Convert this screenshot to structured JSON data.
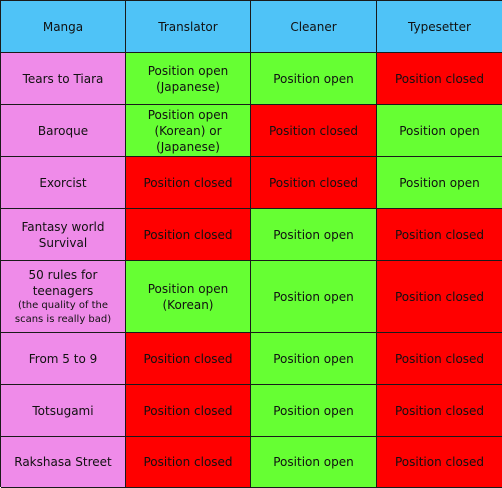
{
  "colors": {
    "header": "#4fc3f7",
    "manga": "#ef8be9",
    "open": "#66ff33",
    "closed": "#ff0000"
  },
  "headers": [
    "Manga",
    "Translator",
    "Cleaner",
    "Typesetter"
  ],
  "rows": [
    {
      "manga": "Tears to Tiara",
      "translator": {
        "text": "Position open (Japanese)",
        "status": "open"
      },
      "cleaner": {
        "text": "Position open",
        "status": "open"
      },
      "typesetter": {
        "text": "Position closed",
        "status": "closed"
      }
    },
    {
      "manga": "Baroque",
      "translator": {
        "text": "Position open (Korean) or (Japanese)",
        "status": "open"
      },
      "cleaner": {
        "text": "Position closed",
        "status": "closed"
      },
      "typesetter": {
        "text": "Position open",
        "status": "open"
      }
    },
    {
      "manga": "Exorcist",
      "translator": {
        "text": "Position closed",
        "status": "closed"
      },
      "cleaner": {
        "text": "Position closed",
        "status": "closed"
      },
      "typesetter": {
        "text": "Position open",
        "status": "open"
      }
    },
    {
      "manga": "Fantasy world Survival",
      "translator": {
        "text": "Position closed",
        "status": "closed"
      },
      "cleaner": {
        "text": "Position open",
        "status": "open"
      },
      "typesetter": {
        "text": "Position closed",
        "status": "closed"
      }
    },
    {
      "manga": "50 rules for teenagers",
      "manga_note": "(the quality of the scans is really bad)",
      "translator": {
        "text": "Position open (Korean)",
        "status": "open"
      },
      "cleaner": {
        "text": "Position open",
        "status": "open"
      },
      "typesetter": {
        "text": "Position closed",
        "status": "closed"
      }
    },
    {
      "manga": "From 5 to 9",
      "translator": {
        "text": "Position closed",
        "status": "closed"
      },
      "cleaner": {
        "text": "Position open",
        "status": "open"
      },
      "typesetter": {
        "text": "Position closed",
        "status": "closed"
      }
    },
    {
      "manga": "Totsugami",
      "translator": {
        "text": "Position closed",
        "status": "closed"
      },
      "cleaner": {
        "text": "Position open",
        "status": "open"
      },
      "typesetter": {
        "text": "Position closed",
        "status": "closed"
      }
    },
    {
      "manga": "Rakshasa Street",
      "translator": {
        "text": "Position closed",
        "status": "closed"
      },
      "cleaner": {
        "text": "Position open",
        "status": "open"
      },
      "typesetter": {
        "text": "Position closed",
        "status": "closed"
      }
    }
  ]
}
